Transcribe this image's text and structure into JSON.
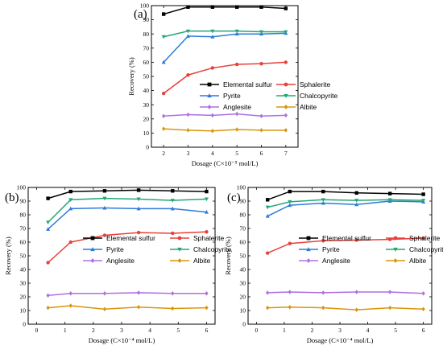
{
  "figure": {
    "panels": [
      "(a)",
      "(b)",
      "(c)"
    ]
  },
  "chart_data": [
    {
      "type": "line",
      "panel_label": "(a)",
      "x": [
        2,
        3,
        4,
        5,
        6,
        7
      ],
      "xlim": [
        1.5,
        7.5
      ],
      "xticks": [
        "2",
        "3",
        "4",
        "5",
        "6",
        "7"
      ],
      "ylim": [
        0,
        100
      ],
      "yticks": [
        "0",
        "10",
        "20",
        "30",
        "40",
        "50",
        "60",
        "70",
        "80",
        "90",
        "100"
      ],
      "xlabel": "Dosage (C×10⁻⁵ mol/L)",
      "ylabel": "Recovery (%)",
      "legend_position": "middle",
      "series": [
        {
          "name": "Elemental sulfur",
          "color": "#000000",
          "marker": "square",
          "values": [
            94,
            99,
            99,
            99,
            99,
            98
          ]
        },
        {
          "name": "Sphalerite",
          "color": "#e8403a",
          "marker": "circle",
          "values": [
            38,
            51,
            56,
            58.5,
            59,
            60
          ]
        },
        {
          "name": "Pyrite",
          "color": "#2f7ad8",
          "marker": "triangle-up",
          "values": [
            60,
            78.5,
            78,
            80,
            80,
            80.5
          ]
        },
        {
          "name": "Chalcopyrite",
          "color": "#22a872",
          "marker": "triangle-down",
          "values": [
            78,
            82,
            82,
            82,
            81.5,
            81.5
          ]
        },
        {
          "name": "Anglesite",
          "color": "#b070e0",
          "marker": "diamond",
          "values": [
            22,
            23,
            22.5,
            23.5,
            22,
            22.5
          ]
        },
        {
          "name": "Albite",
          "color": "#d9950c",
          "marker": "diamond",
          "values": [
            13,
            12,
            11.5,
            12.5,
            12,
            12
          ]
        }
      ]
    },
    {
      "type": "line",
      "panel_label": "(b)",
      "x": [
        0.4,
        1.2,
        2.4,
        3.6,
        4.8,
        6
      ],
      "xlim": [
        -0.3,
        6.3
      ],
      "xticks": [
        "0",
        "1",
        "2",
        "3",
        "4",
        "5",
        "6"
      ],
      "ylim": [
        0,
        100
      ],
      "yticks": [
        "0",
        "10",
        "20",
        "30",
        "40",
        "50",
        "60",
        "70",
        "80",
        "90",
        "100"
      ],
      "xlabel": "Dosage (C×10⁻⁴ mol/L)",
      "ylabel": "Recovery (%)",
      "legend_position": "middle",
      "series": [
        {
          "name": "Elemental sulfur",
          "color": "#000000",
          "marker": "square",
          "values": [
            92,
            97,
            97.5,
            98,
            97.5,
            97
          ]
        },
        {
          "name": "Sphalerite",
          "color": "#e8403a",
          "marker": "circle",
          "values": [
            45,
            60,
            65,
            67,
            66.5,
            67.5
          ]
        },
        {
          "name": "Pyrite",
          "color": "#2f7ad8",
          "marker": "triangle-up",
          "values": [
            69.5,
            84.5,
            85,
            84.5,
            84.5,
            82
          ]
        },
        {
          "name": "Chalcopyrite",
          "color": "#22a872",
          "marker": "triangle-down",
          "values": [
            74.5,
            91,
            92,
            91.5,
            90.5,
            91.5
          ]
        },
        {
          "name": "Anglesite",
          "color": "#b070e0",
          "marker": "diamond",
          "values": [
            21,
            22.5,
            22.5,
            23,
            22.5,
            22.5
          ]
        },
        {
          "name": "Albite",
          "color": "#d9950c",
          "marker": "diamond",
          "values": [
            12,
            13.5,
            11,
            12.5,
            11.5,
            12
          ]
        }
      ]
    },
    {
      "type": "line",
      "panel_label": "(c)",
      "x": [
        0.4,
        1.2,
        2.4,
        3.6,
        4.8,
        6
      ],
      "xlim": [
        -0.3,
        6.3
      ],
      "xticks": [
        "0",
        "1",
        "2",
        "3",
        "4",
        "5",
        "6"
      ],
      "ylim": [
        0,
        100
      ],
      "yticks": [
        "0",
        "10",
        "20",
        "30",
        "40",
        "50",
        "60",
        "70",
        "80",
        "90",
        "100"
      ],
      "xlabel": "Dosage (C×10⁻⁴ mol/L)",
      "ylabel": "Recovery (%)",
      "legend_position": "middle",
      "series": [
        {
          "name": "Elemental sulfur",
          "color": "#000000",
          "marker": "square",
          "values": [
            91,
            97,
            97,
            96,
            95.5,
            95
          ]
        },
        {
          "name": "Sphalerite",
          "color": "#e8403a",
          "marker": "circle",
          "values": [
            52,
            59,
            61,
            61.5,
            62,
            63
          ]
        },
        {
          "name": "Pyrite",
          "color": "#2f7ad8",
          "marker": "triangle-up",
          "values": [
            79,
            87,
            88.5,
            87.5,
            90,
            89.5
          ]
        },
        {
          "name": "Chalcopyrite",
          "color": "#22a872",
          "marker": "triangle-down",
          "values": [
            85.5,
            89.5,
            91,
            90.5,
            91,
            90.5
          ]
        },
        {
          "name": "Anglesite",
          "color": "#b070e0",
          "marker": "diamond",
          "values": [
            23,
            23.5,
            23,
            23.5,
            23.5,
            22.5
          ]
        },
        {
          "name": "Albite",
          "color": "#d9950c",
          "marker": "diamond",
          "values": [
            12,
            12.5,
            12,
            10.5,
            12,
            11
          ]
        }
      ]
    }
  ]
}
